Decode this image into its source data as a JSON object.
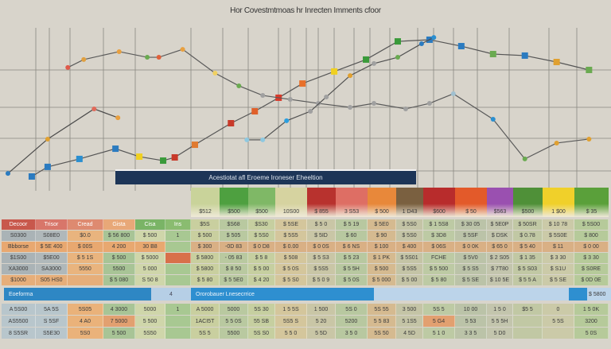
{
  "chart_data": {
    "type": "line",
    "title": "Hor Covestmtmoas hr Inrecten Imments cfoor",
    "xlabel": "",
    "ylabel": "",
    "xlim": [
      0,
      100
    ],
    "ylim": [
      0,
      100
    ],
    "grid": true,
    "series": [
      {
        "color": "#4a4a4a",
        "points": [
          [
            1.3,
            2
          ],
          [
            7.8,
            24.5
          ],
          [
            15.4,
            44.3
          ],
          [
            19.3,
            38.5
          ]
        ],
        "marker_colors": [
          "#2b7bc0",
          "#e0a030",
          "#e06a5a",
          "#e8a040"
        ]
      },
      {
        "color": "#555555",
        "points": [
          [
            5.2,
            0
          ],
          [
            7.8,
            6.3
          ],
          [
            13,
            11.5
          ],
          [
            18.9,
            18.2
          ],
          [
            22.8,
            13
          ],
          [
            26.7,
            10.4
          ],
          [
            28.6,
            12.5
          ],
          [
            31.9,
            20.8
          ],
          [
            37.8,
            34.9
          ],
          [
            41.7,
            42.7
          ],
          [
            45.6,
            51.6
          ],
          [
            49.5,
            60.9
          ],
          [
            54.7,
            68.8
          ],
          [
            59.9,
            76.6
          ],
          [
            65.1,
            88.5
          ],
          [
            70.3,
            89.6
          ],
          [
            75.5,
            85.4
          ],
          [
            80.7,
            80.2
          ],
          [
            85.9,
            79.2
          ],
          [
            91.1,
            75
          ],
          [
            96.4,
            69.8
          ]
        ],
        "marker_colors": [
          "#2b7bc0",
          "#2b7bc0",
          "#2b8fd0",
          "#2b7bc0",
          "#f0d020",
          "#3a9a3a",
          "#c83a2a",
          "#e07a30",
          "#c83a2a",
          "#e0602a",
          "#d83a2a",
          "#e8702a",
          "#f0d020",
          "#3a9a3a",
          "#3a9a3a",
          "#2b7bc0",
          "#2b7bc0",
          "#6aaa50",
          "#2b7bc0",
          "#e0a030",
          "#6aaa50"
        ]
      },
      {
        "color": "#5a5a5a",
        "points": [
          [
            11.1,
            71.4
          ],
          [
            13.7,
            76.6
          ],
          [
            19.5,
            81.8
          ],
          [
            24.1,
            78.1
          ],
          [
            26,
            78.1
          ],
          [
            29.9,
            83.3
          ],
          [
            35.2,
            67.7
          ],
          [
            39.1,
            59.4
          ],
          [
            43,
            53.1
          ],
          [
            47.5,
            50.5
          ],
          [
            52.1,
            47.9
          ],
          [
            57.3,
            45.3
          ],
          [
            61.2,
            47.9
          ],
          [
            66.4,
            44.3
          ],
          [
            70.3,
            47.9
          ],
          [
            74.2,
            54.2
          ],
          [
            80.7,
            37.5
          ],
          [
            85.9,
            11.5
          ],
          [
            91.1,
            21.9
          ],
          [
            96.4,
            24.5
          ]
        ],
        "marker_colors": [
          "#e05a4a",
          "#e0a040",
          "#e8a040",
          "#6aaa50",
          "#e0603a",
          "#e8a040",
          "#f0d060",
          "#6aaa50",
          "#a0a0a0",
          "#a0a0a0",
          "#a0a0a0",
          "#a0a0a0",
          "#a0a0a0",
          "#a0a0a0",
          "#a0a0a0",
          "#a0c0d0",
          "#2b8fd0",
          "#6aaa50",
          "#e0a030",
          "#e0a030"
        ]
      },
      {
        "color": "#505050",
        "points": [
          [
            40.4,
            24
          ],
          [
            43,
            24
          ],
          [
            46.9,
            36.5
          ],
          [
            50.8,
            42.7
          ],
          [
            53.4,
            52.1
          ],
          [
            57.3,
            66.1
          ],
          [
            61.2,
            74
          ],
          [
            65.1,
            78.1
          ],
          [
            69,
            87
          ],
          [
            71,
            91.1
          ]
        ],
        "marker_colors": [
          "#8ec8e0",
          "#8ec8e0",
          "#2b9fe0",
          "#a0a0a0",
          "#a0a0a0",
          "#e0a030",
          "#a0a0a0",
          "#6aaa50",
          "#2b7bc0",
          "#2b8fd0"
        ]
      }
    ]
  },
  "banner": "Acestiotat afl Eroeme Ironeser Eheeltion",
  "table": {
    "right_headers": [
      {
        "label": "$512",
        "color": "#c9d39a"
      },
      {
        "label": "$500",
        "color": "#4ea040"
      },
      {
        "label": "$500",
        "color": "#7fb866"
      },
      {
        "label": "10S00",
        "color": "#d6d3a0"
      },
      {
        "label": "$ 855",
        "color": "#b8322e"
      },
      {
        "label": "3 S53",
        "color": "#de6e64"
      },
      {
        "label": "$ 500",
        "color": "#e8883a"
      },
      {
        "label": "1 D43",
        "color": "#7a6040"
      },
      {
        "label": "$600",
        "color": "#b82c2c"
      },
      {
        "label": "$ 50",
        "color": "#e35a2a"
      },
      {
        "label": "$563",
        "color": "#9a50b0"
      },
      {
        "label": "$500",
        "color": "#4f9038"
      },
      {
        "label": "1 $00",
        "color": "#f0d02a"
      },
      {
        "label": "$ 35",
        "color": "#5aa03a"
      }
    ],
    "left_headers": [
      {
        "label": "Decoor",
        "color": "#c8584c"
      },
      {
        "label": "Trisor",
        "color": "#d8766a"
      },
      {
        "label": "Cread",
        "color": "#de8a70"
      },
      {
        "label": "Gista",
        "color": "#e8a878"
      },
      {
        "label": "Cisa",
        "color": "#7ab466"
      },
      {
        "label": "Ins",
        "color": "#8abc70"
      }
    ],
    "left_col_colors": [
      "#aab3b6",
      "#b0b8ba",
      "#e9b47e",
      "#a8c496",
      "#cfd6aa",
      "#a8c892"
    ],
    "right_col_colors": [
      "#c9cf9f",
      "#b9c9a0",
      "#c6cfa0",
      "#d4c69c",
      "#c9c6a6",
      "#b8c8a0",
      "#d5ba90",
      "#c4c4a6",
      "#bdcaa4",
      "#bbc3a8",
      "#c3c5ad",
      "#c1c8a4",
      "#cbcaa8",
      "#b6ca9a"
    ],
    "header_row_values": [
      "$5S",
      "$S68",
      "$S30",
      "$ 5SE",
      "$ 5 0",
      "$ 5 19",
      "$ 5E0",
      "$ 5S0",
      "$ 1 5S8",
      "$ 30 05",
      "$ 5E0P",
      "$ 50SR",
      "$ 10 78",
      "$ 5S00",
      "$ 5800"
    ],
    "rows": [
      [
        "S0300",
        "S08E0",
        "$0.0",
        "$ 56 800",
        "$ 500",
        "1",
        "$ 500",
        "$ 505",
        "$ 5S0",
        "$ 5S5",
        "$ 5ID",
        "$ 60",
        "$ 90",
        "$ 5S0",
        "$ 3D8",
        "$ 5SF",
        "$ DSK",
        "$ 0.78",
        "$ 5S0E",
        "$ 800"
      ],
      [
        "Bbborse",
        "$ 5E 400",
        "$ 00S",
        "4 200",
        "30 B8",
        "",
        "$ 300",
        "-0D 83",
        "$ 0 D8",
        "$ 0.00",
        "$ 0 0S",
        "$ 6 NS",
        "$ 100",
        "$ 400",
        "$ 06S",
        "$ 0 0K",
        "$ 65 0",
        "$ 5 40",
        "$ 11",
        "$ 0 00"
      ],
      [
        "$1S00",
        "$5E00",
        "$ 5 1S",
        "$ 500",
        "$ 5000",
        "",
        "$ 5800",
        "- 05 83",
        "$ 5 8",
        "$ 508",
        "$ 5 S3",
        "$ 5 23",
        "$ 1 PK",
        "$ 5S01",
        "FCHE",
        "$ 5V0",
        "$ 2 S05",
        "$ 1 35",
        "$ 3 30",
        "$ 3 30"
      ],
      [
        "XA3000",
        "SA3000",
        "5550",
        "5500",
        "5 000",
        "",
        "$ 5800",
        "$ 8 50",
        "$ 5 00",
        "$ 5 0S",
        "$ 5S5",
        "$ 5 5H",
        "$ 500",
        "$ 5S5",
        "$ 5 500",
        "$ 5 S5",
        "$ 7T80",
        "$ 5 S03",
        "$ S1U",
        "$ S0RE"
      ],
      [
        "$1000",
        "S05 HS0",
        "",
        "$ 5 080",
        "S 50 8",
        "",
        "$ 5 80",
        "$ 5 5E0",
        "$ 4 20",
        "$ 5 S0",
        "$ 5 0 9",
        "$ 5 0S",
        "$ 5 000",
        "$ 5 00",
        "$ 5 80",
        "$ 5 SE",
        "$ 10 5E",
        "$ 5 5 A",
        "$ 5 SE",
        "$ 0D 0E"
      ]
    ],
    "band": {
      "left_label": "Eoeforma",
      "mid_value": "4",
      "right_label": "Ororobauer Lnesecrrice",
      "colors": [
        "#2e87c4",
        "#b6cfe6",
        "#2e8fd0",
        "#bcd4ea",
        "#2e8fd0"
      ]
    },
    "bottom_rows": [
      [
        "A 5S00",
        "5A 5S",
        "5S05",
        "4 3000",
        "5000",
        "1",
        "A 5000",
        "5000",
        "5S 30",
        "1 5 5S",
        "1 500",
        "5S 0",
        "5S 55",
        "3 500",
        "5S 5",
        "10 00",
        "1 5 0",
        "$5 5",
        "0",
        "1 5 0K"
      ],
      [
        "AS5500",
        "S 5SF",
        "4 A0",
        "7 5000",
        "5 500",
        "",
        "1ACI5T",
        "5 5 0S",
        "55 SB",
        "5S5 S",
        "5 20",
        "5200",
        "5 5 83",
        "5 1S5",
        "5 G4",
        "5 53",
        "5 5 5H",
        "",
        "5 5S",
        "3200"
      ],
      [
        "8 S5SR",
        "S5E30",
        "5S0",
        "5 500",
        "5S50",
        "",
        "5S 5",
        "5500",
        "5S S0",
        "5 5 0",
        "5 5D",
        "3 5 0",
        "5S 50",
        "4 5D",
        "5 1 0",
        "3 3 5",
        "5 D0",
        "",
        "",
        "5 0S"
      ]
    ]
  }
}
